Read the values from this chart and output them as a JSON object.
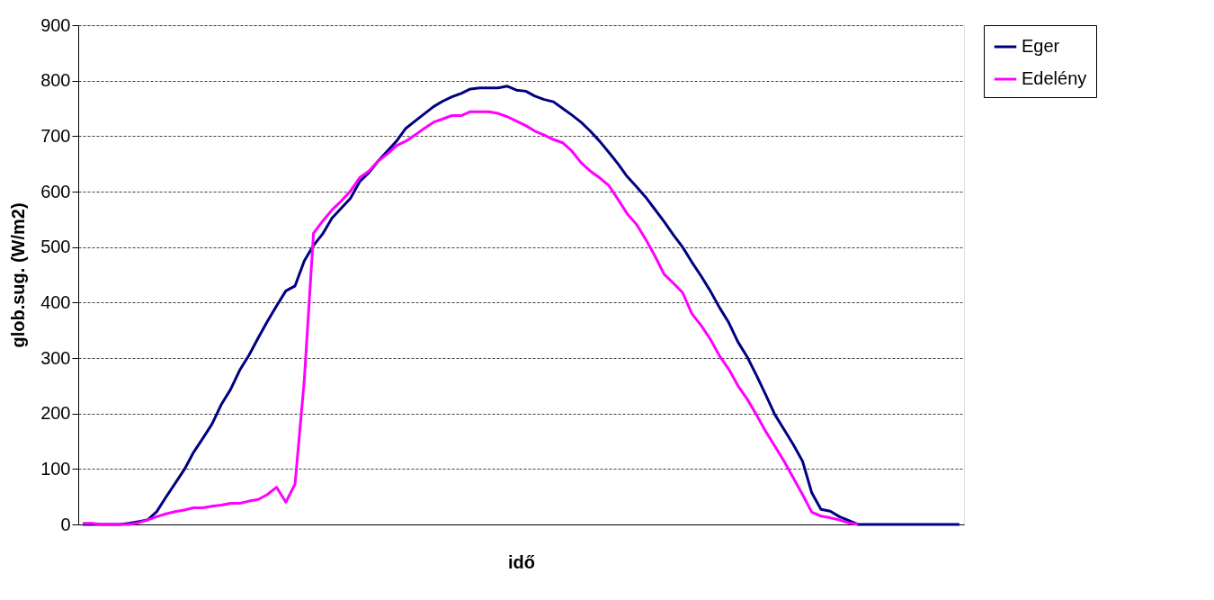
{
  "chart_data": {
    "type": "line",
    "xlabel": "idő",
    "ylabel": "glob.sug. (W/m2)",
    "categories": [
      null,
      null,
      null,
      null,
      null,
      null,
      null,
      null,
      null,
      null,
      null,
      null,
      null,
      null,
      null,
      null,
      null,
      null,
      null,
      null,
      null,
      null,
      null,
      null,
      null,
      null,
      null,
      null,
      null,
      null,
      null,
      null,
      null,
      null,
      null,
      null,
      null,
      null,
      null,
      null,
      null,
      null,
      null,
      null,
      null,
      null,
      null,
      null,
      null,
      null,
      null,
      null,
      null,
      null,
      null,
      null,
      null,
      null,
      null,
      null,
      null,
      null,
      null,
      null,
      null,
      null,
      null,
      null,
      null,
      null,
      null,
      null,
      null,
      null,
      null,
      null,
      null,
      null,
      null,
      null,
      null,
      null,
      null,
      null,
      null,
      null,
      null,
      null,
      null,
      null,
      null,
      null,
      null,
      null,
      null,
      null
    ],
    "series": [
      {
        "name": "Eger",
        "color": "#000080",
        "values": [
          0,
          0,
          0,
          0,
          0,
          2,
          5,
          8,
          23,
          49,
          74,
          99,
          130,
          155,
          181,
          216,
          243,
          278,
          305,
          336,
          366,
          394,
          421,
          430,
          475,
          503,
          524,
          552,
          570,
          588,
          618,
          634,
          655,
          673,
          691,
          714,
          727,
          740,
          753,
          763,
          771,
          777,
          785,
          787,
          787,
          787,
          790,
          783,
          781,
          772,
          766,
          762,
          750,
          738,
          725,
          709,
          691,
          671,
          650,
          627,
          609,
          590,
          568,
          546,
          522,
          500,
          473,
          448,
          421,
          391,
          364,
          329,
          302,
          269,
          234,
          198,
          171,
          144,
          114,
          57,
          27,
          24,
          14,
          7,
          0,
          0,
          0,
          0,
          0,
          0,
          0,
          0,
          0,
          0,
          0,
          0
        ]
      },
      {
        "name": "Edelény",
        "color": "#ff00ff",
        "values": [
          2,
          2,
          0,
          0,
          0,
          0,
          3,
          8,
          14,
          19,
          23,
          26,
          30,
          30,
          33,
          35,
          38,
          38,
          42,
          45,
          54,
          67,
          40,
          73,
          260,
          525,
          547,
          567,
          583,
          601,
          625,
          637,
          655,
          668,
          683,
          691,
          702,
          714,
          725,
          731,
          737,
          737,
          744,
          744,
          744,
          741,
          735,
          727,
          719,
          709,
          702,
          694,
          688,
          673,
          652,
          637,
          625,
          611,
          586,
          560,
          541,
          514,
          484,
          451,
          435,
          418,
          380,
          359,
          334,
          304,
          280,
          250,
          226,
          198,
          168,
          141,
          114,
          84,
          54,
          22,
          15,
          12,
          8,
          3,
          0,
          null,
          null,
          null,
          null,
          null,
          null,
          null,
          null,
          null,
          null,
          null
        ]
      }
    ],
    "ylim": [
      0,
      900
    ],
    "yticks": [
      0,
      100,
      200,
      300,
      400,
      500,
      600,
      700,
      800,
      900
    ],
    "grid": "y",
    "legend": "right",
    "marker": "none",
    "line_style": "solid"
  }
}
